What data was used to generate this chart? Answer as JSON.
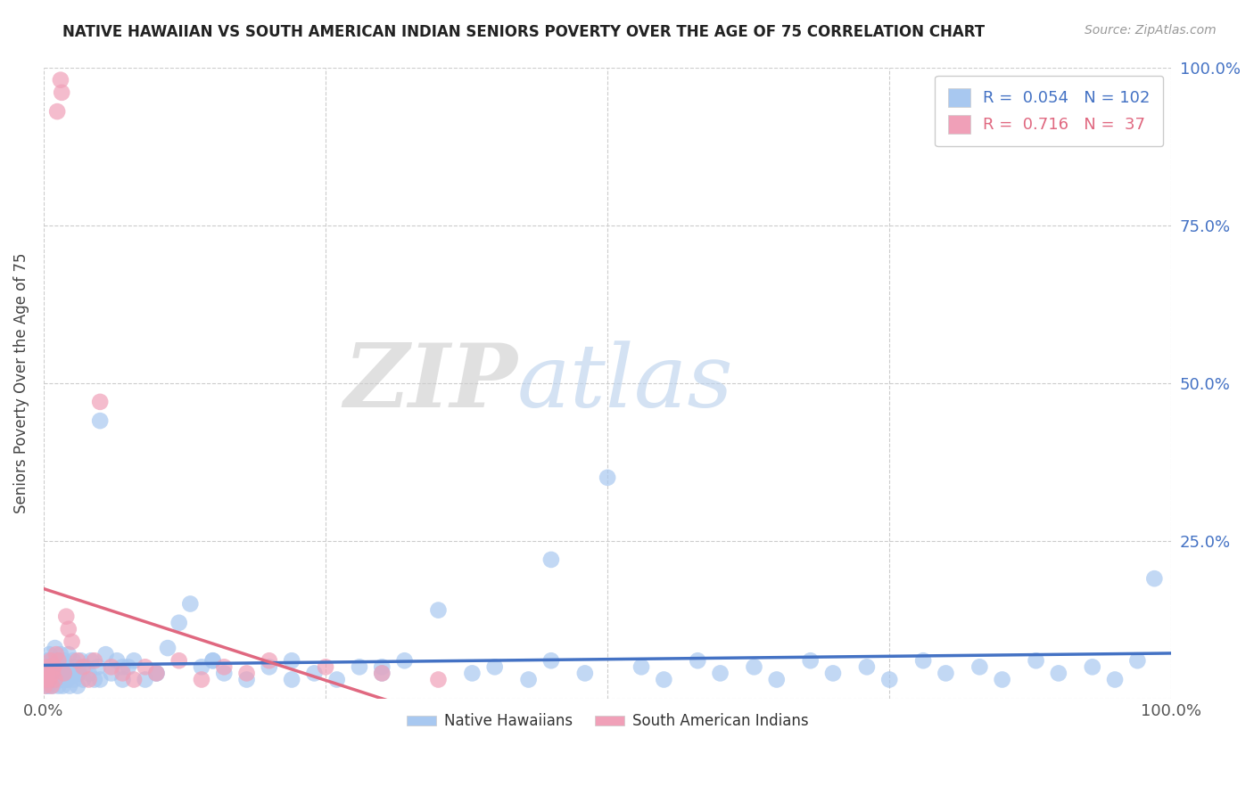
{
  "title": "NATIVE HAWAIIAN VS SOUTH AMERICAN INDIAN SENIORS POVERTY OVER THE AGE OF 75 CORRELATION CHART",
  "source": "Source: ZipAtlas.com",
  "ylabel": "Seniors Poverty Over the Age of 75",
  "xlim": [
    0,
    1.0
  ],
  "ylim": [
    0,
    1.0
  ],
  "xticks": [
    0.0,
    0.25,
    0.5,
    0.75,
    1.0
  ],
  "yticks": [
    0.0,
    0.25,
    0.5,
    0.75,
    1.0
  ],
  "xticklabels": [
    "0.0%",
    "",
    "",
    "",
    "100.0%"
  ],
  "yticklabels_right": [
    "",
    "25.0%",
    "50.0%",
    "75.0%",
    "100.0%"
  ],
  "R1": 0.054,
  "N1": 102,
  "R2": 0.716,
  "N2": 37,
  "color_blue": "#A8C8F0",
  "color_pink": "#F0A0B8",
  "color_blue_text": "#4472C4",
  "color_pink_text": "#E06880",
  "watermark_ZIP": "ZIP",
  "watermark_atlas": "atlas",
  "background": "#FFFFFF",
  "blue_x": [
    0.002,
    0.003,
    0.004,
    0.005,
    0.005,
    0.006,
    0.007,
    0.008,
    0.008,
    0.009,
    0.01,
    0.01,
    0.011,
    0.012,
    0.013,
    0.014,
    0.015,
    0.015,
    0.016,
    0.017,
    0.018,
    0.019,
    0.02,
    0.021,
    0.022,
    0.023,
    0.025,
    0.026,
    0.027,
    0.028,
    0.03,
    0.031,
    0.033,
    0.035,
    0.037,
    0.04,
    0.042,
    0.045,
    0.048,
    0.05,
    0.055,
    0.06,
    0.065,
    0.07,
    0.075,
    0.08,
    0.09,
    0.1,
    0.11,
    0.12,
    0.13,
    0.14,
    0.15,
    0.16,
    0.18,
    0.2,
    0.22,
    0.24,
    0.26,
    0.28,
    0.3,
    0.32,
    0.35,
    0.38,
    0.4,
    0.43,
    0.45,
    0.48,
    0.5,
    0.53,
    0.55,
    0.58,
    0.6,
    0.63,
    0.65,
    0.68,
    0.7,
    0.73,
    0.75,
    0.78,
    0.8,
    0.83,
    0.85,
    0.88,
    0.9,
    0.93,
    0.95,
    0.97,
    0.985,
    0.003,
    0.006,
    0.009,
    0.015,
    0.02,
    0.03,
    0.05,
    0.07,
    0.1,
    0.15,
    0.22,
    0.3,
    0.45
  ],
  "blue_y": [
    0.03,
    0.06,
    0.02,
    0.04,
    0.07,
    0.05,
    0.03,
    0.06,
    0.02,
    0.04,
    0.05,
    0.08,
    0.03,
    0.06,
    0.02,
    0.04,
    0.07,
    0.03,
    0.05,
    0.02,
    0.06,
    0.04,
    0.05,
    0.03,
    0.07,
    0.02,
    0.04,
    0.06,
    0.03,
    0.05,
    0.02,
    0.04,
    0.06,
    0.03,
    0.05,
    0.04,
    0.06,
    0.03,
    0.05,
    0.44,
    0.07,
    0.04,
    0.06,
    0.03,
    0.05,
    0.06,
    0.03,
    0.04,
    0.08,
    0.12,
    0.15,
    0.05,
    0.06,
    0.04,
    0.03,
    0.05,
    0.06,
    0.04,
    0.03,
    0.05,
    0.04,
    0.06,
    0.14,
    0.04,
    0.05,
    0.03,
    0.06,
    0.04,
    0.35,
    0.05,
    0.03,
    0.06,
    0.04,
    0.05,
    0.03,
    0.06,
    0.04,
    0.05,
    0.03,
    0.06,
    0.04,
    0.05,
    0.03,
    0.06,
    0.04,
    0.05,
    0.03,
    0.06,
    0.19,
    0.02,
    0.03,
    0.04,
    0.05,
    0.03,
    0.04,
    0.03,
    0.05,
    0.04,
    0.06,
    0.03,
    0.05,
    0.22
  ],
  "pink_x": [
    0.001,
    0.002,
    0.003,
    0.004,
    0.005,
    0.006,
    0.007,
    0.008,
    0.009,
    0.01,
    0.011,
    0.012,
    0.013,
    0.015,
    0.016,
    0.018,
    0.02,
    0.022,
    0.025,
    0.03,
    0.035,
    0.04,
    0.045,
    0.05,
    0.06,
    0.07,
    0.08,
    0.09,
    0.1,
    0.12,
    0.14,
    0.16,
    0.18,
    0.2,
    0.25,
    0.3,
    0.35
  ],
  "pink_y": [
    0.02,
    0.03,
    0.04,
    0.05,
    0.03,
    0.06,
    0.02,
    0.04,
    0.05,
    0.03,
    0.07,
    0.93,
    0.06,
    0.98,
    0.96,
    0.04,
    0.13,
    0.11,
    0.09,
    0.06,
    0.05,
    0.03,
    0.06,
    0.47,
    0.05,
    0.04,
    0.03,
    0.05,
    0.04,
    0.06,
    0.03,
    0.05,
    0.04,
    0.06,
    0.05,
    0.04,
    0.03
  ]
}
